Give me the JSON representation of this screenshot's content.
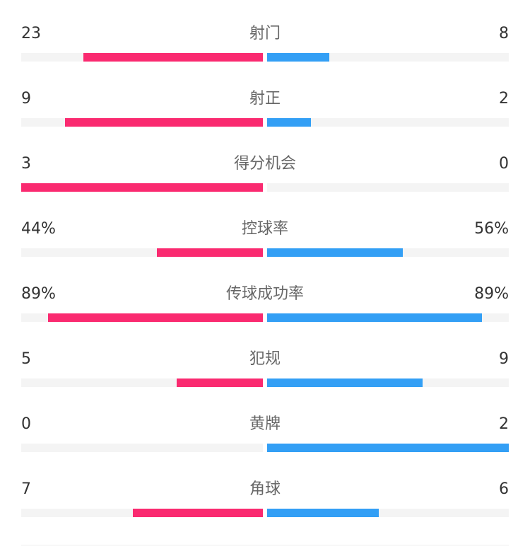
{
  "colors": {
    "home": "#fa2a70",
    "away": "#339ff5",
    "track": "#f4f4f4"
  },
  "stats": [
    {
      "label": "射门",
      "home": "23",
      "away": "8",
      "home_fill": 0.742,
      "away_fill": 0.258
    },
    {
      "label": "射正",
      "home": "9",
      "away": "2",
      "home_fill": 0.818,
      "away_fill": 0.182
    },
    {
      "label": "得分机会",
      "home": "3",
      "away": "0",
      "home_fill": 1.0,
      "away_fill": 0.0
    },
    {
      "label": "控球率",
      "home": "44%",
      "away": "56%",
      "home_fill": 0.44,
      "away_fill": 0.56
    },
    {
      "label": "传球成功率",
      "home": "89%",
      "away": "89%",
      "home_fill": 0.89,
      "away_fill": 0.89
    },
    {
      "label": "犯规",
      "home": "5",
      "away": "9",
      "home_fill": 0.357,
      "away_fill": 0.643
    },
    {
      "label": "黄牌",
      "home": "0",
      "away": "2",
      "home_fill": 0.0,
      "away_fill": 1.0
    },
    {
      "label": "角球",
      "home": "7",
      "away": "6",
      "home_fill": 0.538,
      "away_fill": 0.462
    }
  ]
}
